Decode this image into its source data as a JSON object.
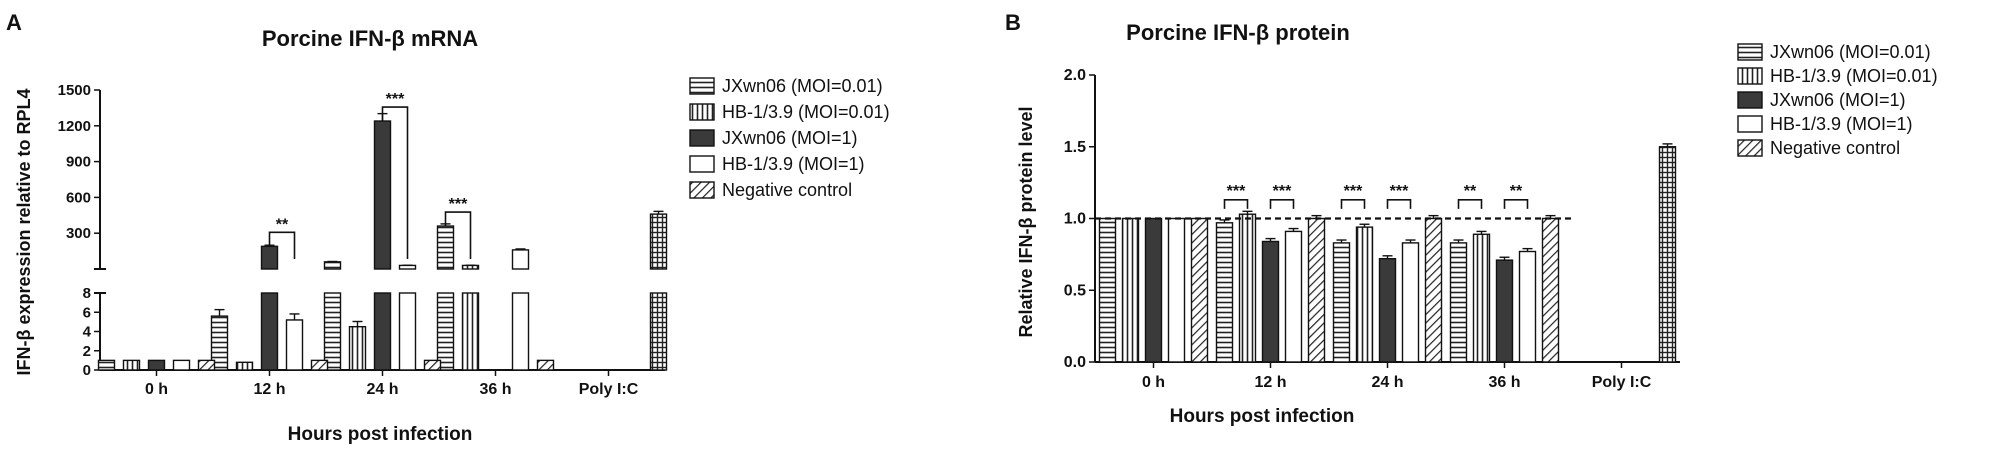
{
  "panels": {
    "a_letter": "A",
    "b_letter": "B"
  },
  "legend": {
    "items": [
      {
        "label": "JXwn06 (MOI=0.01)",
        "pattern": "hlines"
      },
      {
        "label": "HB-1/3.9 (MOI=0.01)",
        "pattern": "vlines"
      },
      {
        "label": "JXwn06 (MOI=1)",
        "pattern": "solid-dark"
      },
      {
        "label": "HB-1/3.9 (MOI=1)",
        "pattern": "white"
      },
      {
        "label": "Negative control",
        "pattern": "diag"
      }
    ]
  },
  "colors": {
    "dark": "#3a3a3a",
    "axis": "#111111"
  },
  "chart_data": [
    {
      "type": "bar",
      "title": "Porcine IFN-β  mRNA",
      "xlabel": "Hours post infection",
      "ylabel": "IFN-β expression relative to RPL4",
      "categories": [
        "0 h",
        "12 h",
        "24 h",
        "36 h",
        "Poly I:C"
      ],
      "broken_axis": {
        "lower_range": [
          0,
          8
        ],
        "upper_range": [
          0,
          1500
        ],
        "break_at": 8
      },
      "yticks_lower": [
        "0",
        "2",
        "4",
        "6",
        "8"
      ],
      "yticks_upper": [
        "300",
        "600",
        "900",
        "1200",
        "1500"
      ],
      "series": [
        {
          "name": "JXwn06 (MOI=0.01)",
          "values": [
            1,
            5.6,
            60,
            360,
            null
          ]
        },
        {
          "name": "HB-1/3.9 (MOI=0.01)",
          "values": [
            1,
            0.8,
            4.5,
            30,
            null
          ]
        },
        {
          "name": "JXwn06 (MOI=1)",
          "values": [
            1,
            190,
            1240,
            0,
            null
          ]
        },
        {
          "name": "HB-1/3.9 (MOI=1)",
          "values": [
            1,
            5.2,
            30,
            160,
            null
          ]
        },
        {
          "name": "Negative control",
          "values": [
            1,
            1,
            1,
            1,
            460
          ]
        }
      ],
      "significance": [
        {
          "category": "12 h",
          "label": "**"
        },
        {
          "category": "24 h",
          "label": "***"
        },
        {
          "category": "36 h",
          "label": "***"
        }
      ]
    },
    {
      "type": "bar",
      "title": "Porcine IFN-β  protein",
      "xlabel": "Hours post infection",
      "ylabel": "Relative IFN-β  protein level",
      "categories": [
        "0 h",
        "12 h",
        "24 h",
        "36 h",
        "Poly I:C"
      ],
      "ylim": [
        0,
        2
      ],
      "yticks": [
        "0.0",
        "0.5",
        "1.0",
        "1.5",
        "2.0"
      ],
      "reference_line": 1.0,
      "series": [
        {
          "name": "JXwn06 (MOI=0.01)",
          "values": [
            1,
            0.97,
            0.83,
            0.83,
            null
          ]
        },
        {
          "name": "HB-1/3.9 (MOI=0.01)",
          "values": [
            1,
            1.03,
            0.94,
            0.89,
            null
          ]
        },
        {
          "name": "JXwn06 (MOI=1)",
          "values": [
            1,
            0.84,
            0.72,
            0.71,
            null
          ]
        },
        {
          "name": "HB-1/3.9 (MOI=1)",
          "values": [
            1,
            0.91,
            0.83,
            0.77,
            null
          ]
        },
        {
          "name": "Negative control",
          "values": [
            1,
            1,
            1,
            1,
            1.5
          ]
        }
      ],
      "significance": [
        {
          "category": "12 h",
          "pair": 1,
          "label": "***"
        },
        {
          "category": "12 h",
          "pair": 2,
          "label": "***"
        },
        {
          "category": "24 h",
          "pair": 1,
          "label": "***"
        },
        {
          "category": "24 h",
          "pair": 2,
          "label": "***"
        },
        {
          "category": "36 h",
          "pair": 1,
          "label": "**"
        },
        {
          "category": "36 h",
          "pair": 2,
          "label": "**"
        }
      ]
    }
  ]
}
